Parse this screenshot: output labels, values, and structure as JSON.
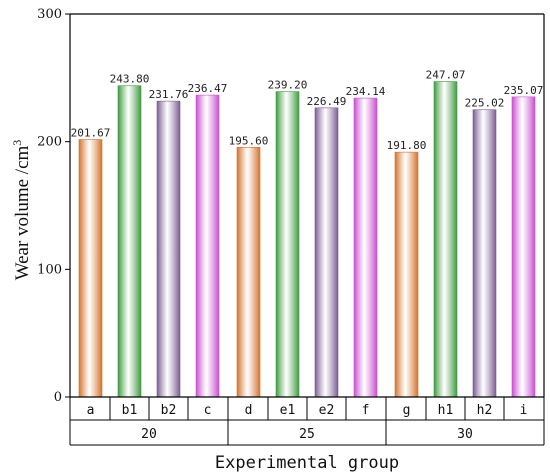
{
  "chart_data": {
    "type": "bar",
    "categories": [
      "a",
      "b1",
      "b2",
      "c",
      "d",
      "e1",
      "e2",
      "f",
      "g",
      "h1",
      "h2",
      "i"
    ],
    "values": [
      201.67,
      243.8,
      231.76,
      236.47,
      195.6,
      239.2,
      226.49,
      234.14,
      191.8,
      247.07,
      225.02,
      235.07
    ],
    "value_labels": [
      "201.67",
      "243.80",
      "231.76",
      "236.47",
      "195.60",
      "239.20",
      "226.49",
      "234.14",
      "191.80",
      "247.07",
      "225.02",
      "235.07"
    ],
    "groups": [
      {
        "label": "20",
        "categories": [
          "a",
          "b1",
          "b2",
          "c"
        ]
      },
      {
        "label": "25",
        "categories": [
          "d",
          "e1",
          "e2",
          "f"
        ]
      },
      {
        "label": "30",
        "categories": [
          "g",
          "h1",
          "h2",
          "i"
        ]
      }
    ],
    "bar_color_pattern": [
      "#d4732c",
      "#3f9a3f",
      "#7a5d93",
      "#c94fcf"
    ],
    "xlabel": "Experimental group",
    "ylabel": "Wear volume /cm",
    "ylabel_superscript": "3",
    "ylim": [
      0,
      300
    ],
    "yticks": [
      0,
      100,
      200,
      300
    ],
    "grid": false
  }
}
